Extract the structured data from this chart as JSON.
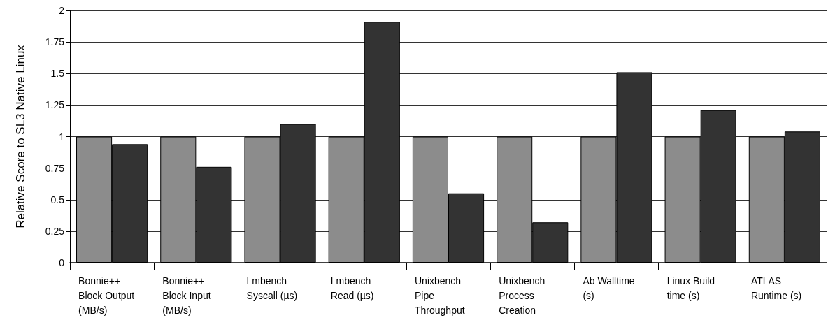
{
  "chart_data": {
    "type": "bar",
    "ylabel": "Relative Score to SL3 Native Linux",
    "categories": [
      "Bonnie++ Block Output (MB/s)",
      "Bonnie++ Block Input (MB/s)",
      "Lmbench Syscall (µs)",
      "Lmbench Read (µs)",
      "Unixbench Pipe Throughput",
      "Unixbench Process Creation",
      "Ab Walltime (s)",
      "Linux Build time (s)",
      "ATLAS Runtime (s)"
    ],
    "series": [
      {
        "color": "#8c8c8c",
        "values": [
          1,
          1,
          1,
          1,
          1,
          1,
          1,
          1,
          1
        ]
      },
      {
        "color": "#333333",
        "values": [
          0.94,
          0.76,
          1.1,
          1.91,
          0.55,
          0.32,
          1.51,
          1.21,
          1.04
        ]
      }
    ],
    "ylim": [
      0,
      2
    ],
    "yticks": [
      0,
      0.25,
      0.5,
      0.75,
      1,
      1.25,
      1.5,
      1.75,
      2
    ],
    "grid": "y"
  }
}
